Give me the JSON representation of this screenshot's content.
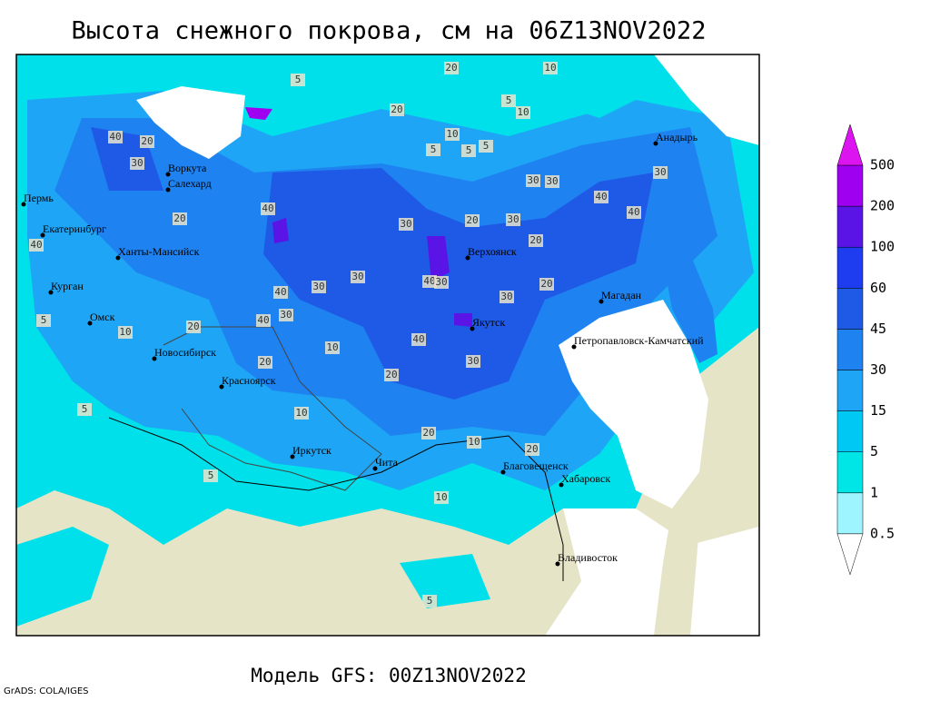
{
  "title": "Высота снежного покрова, см на 06Z13NOV2022",
  "footer": "Модель GFS: 00Z13NOV2022",
  "credit": "GrADS: COLA/IGES",
  "cities": [
    "Воркута",
    "Салехард",
    "Пермь",
    "Екатеринбург",
    "Ханты-Мансийск",
    "Курган",
    "Омск",
    "Новосибирск",
    "Красноярск",
    "Иркутск",
    "Чита",
    "Верхоянск",
    "Якутск",
    "Магадан",
    "Анадырь",
    "Петропавловск-Камчатский",
    "Благовещенск",
    "Хабаровск",
    "Владивосток"
  ],
  "contour_labels": [
    20,
    10,
    5,
    20,
    10,
    5,
    40,
    20,
    30,
    30,
    20,
    40,
    30,
    20,
    30,
    40,
    30,
    40,
    30,
    20,
    30,
    40,
    30,
    40,
    30,
    20,
    10,
    20,
    10,
    5,
    5,
    10,
    5,
    20,
    40,
    30,
    20,
    10,
    5,
    10,
    5,
    5,
    20,
    30,
    40,
    40,
    30,
    10,
    20,
    5
  ],
  "colorbar": {
    "levels": [
      0.5,
      1,
      5,
      15,
      30,
      45,
      60,
      100,
      200,
      500
    ],
    "colors": [
      "#ffffff",
      "#9ff5ff",
      "#00e6e6",
      "#00c8f5",
      "#1ea5f5",
      "#1e82f0",
      "#1e5ae6",
      "#1e3cf0",
      "#5a14e6",
      "#a000f0",
      "#dc14f0"
    ]
  }
}
